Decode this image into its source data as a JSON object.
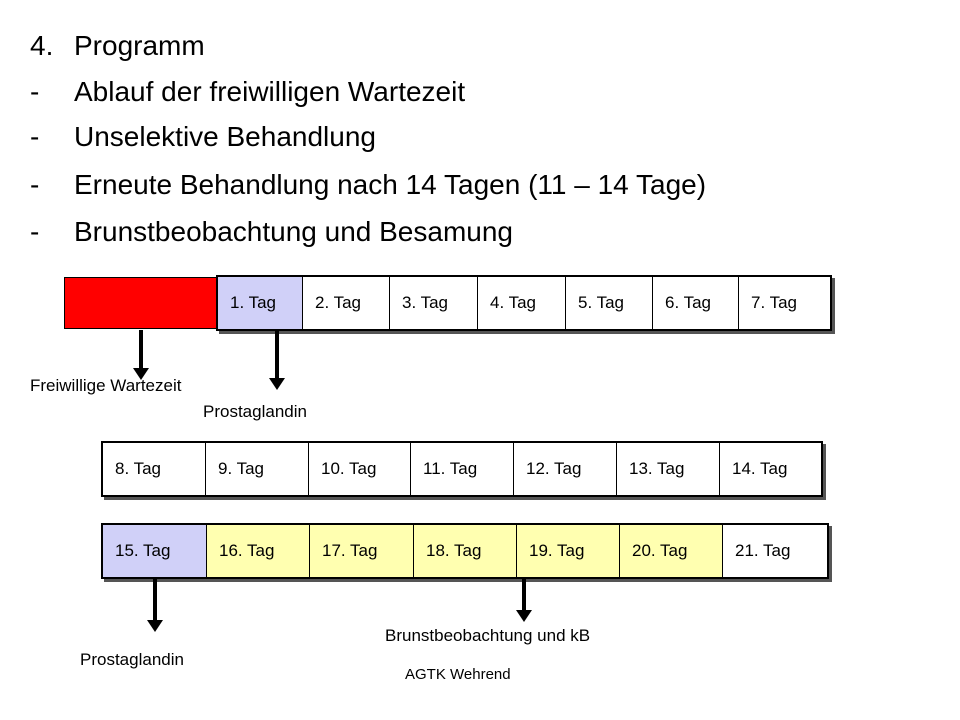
{
  "heading": {
    "lines": [
      {
        "marker": "4.",
        "text": "Programm"
      },
      {
        "marker": "-",
        "text": "Ablauf der freiwilligen Wartezeit"
      },
      {
        "marker": "-",
        "text": "Unselektive Behandlung"
      },
      {
        "marker": "-",
        "text": "Erneute Behandlung nach 14 Tagen (11 – 14 Tage)"
      },
      {
        "marker": "-",
        "text": "Brunstbeobachtung und Besamung"
      }
    ]
  },
  "week1": {
    "days": [
      "1. Tag",
      "2. Tag",
      "3. Tag",
      "4. Tag",
      "5. Tag",
      "6. Tag",
      "7. Tag"
    ]
  },
  "week2": {
    "days": [
      "8. Tag",
      "9. Tag",
      "10. Tag",
      "11. Tag",
      "12. Tag",
      "13. Tag",
      "14. Tag"
    ]
  },
  "week3": {
    "days": [
      "15. Tag",
      "16. Tag",
      "17. Tag",
      "18. Tag",
      "19. Tag",
      "20. Tag",
      "21. Tag"
    ]
  },
  "labels": {
    "waiting_period": "Freiwillige Wartezeit",
    "prostaglandin_1": "Prostaglandin",
    "prostaglandin_2": "Prostaglandin",
    "heat_detection": "Brunstbeobachtung und kB",
    "footer": "AGTK Wehrend"
  },
  "colors": {
    "waiting_block": "#ff0000",
    "treatment_day": "#d0d0f8",
    "heat_detection_day": "#ffffb0"
  }
}
